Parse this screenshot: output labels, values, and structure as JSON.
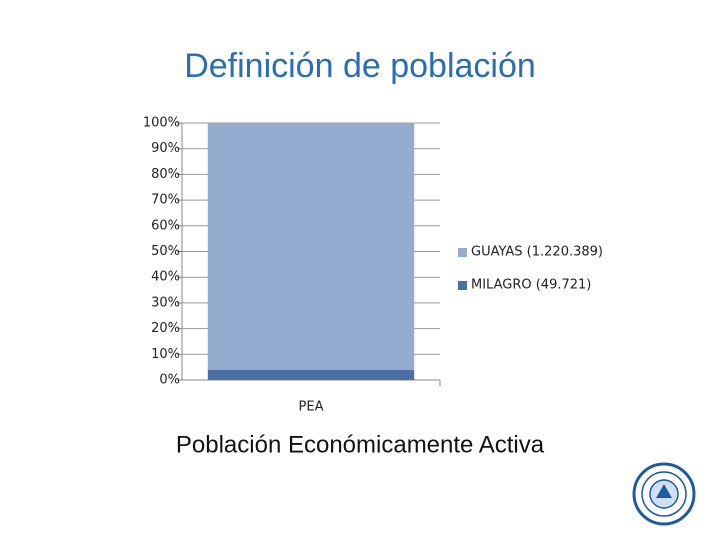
{
  "chart_data": {
    "type": "stacked_bar_100",
    "title": "Definición de población",
    "subtitle": "Población Económicamente Activa",
    "categories": [
      "PEA"
    ],
    "series": [
      {
        "name": "MILAGRO (49.721)",
        "color": "#4a6fa5",
        "values": [
          3.9
        ]
      },
      {
        "name": "GUAYAS (1.220.389)",
        "color": "#95abd0",
        "values": [
          96.1
        ]
      }
    ],
    "ylim": [
      0,
      100
    ],
    "yticks": [
      {
        "value": 0,
        "label": "0%"
      },
      {
        "value": 10,
        "label": "10%"
      },
      {
        "value": 20,
        "label": "20%"
      },
      {
        "value": 30,
        "label": "30%"
      },
      {
        "value": 40,
        "label": "40%"
      },
      {
        "value": 50,
        "label": "50%"
      },
      {
        "value": 60,
        "label": "60%"
      },
      {
        "value": 70,
        "label": "70%"
      },
      {
        "value": 80,
        "label": "80%"
      },
      {
        "value": 90,
        "label": "90%"
      },
      {
        "value": 100,
        "label": "100%"
      }
    ],
    "grid": true,
    "legend": "right"
  }
}
